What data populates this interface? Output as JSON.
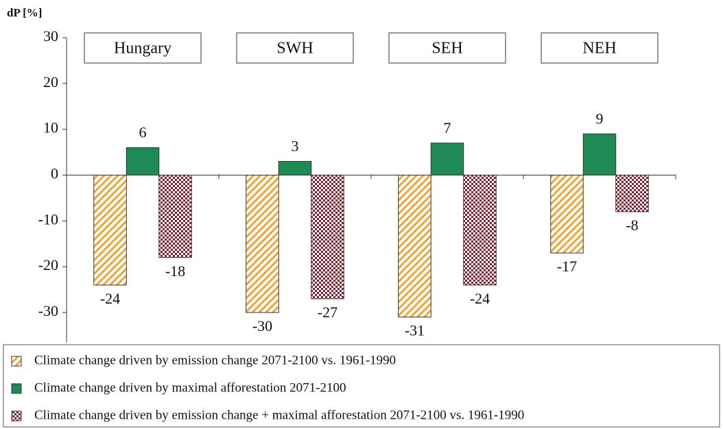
{
  "chart_data": {
    "type": "bar",
    "y_label": "dP [%]",
    "categories": [
      "Hungary",
      "SWH",
      "SEH",
      "NEH"
    ],
    "series": [
      {
        "name": "Climate change driven by emission change 2071-2100 vs. 1961-1990",
        "color": "#f0a531",
        "pattern": "hatch",
        "values": [
          -24,
          -30,
          -31,
          -17
        ]
      },
      {
        "name": "Climate change driven by maximal afforestation 2071-2100",
        "color": "#1e8b55",
        "pattern": "solid",
        "values": [
          6,
          3,
          7,
          9
        ]
      },
      {
        "name": "Climate change driven by emission change + maximal afforestation 2071-2100 vs. 1961-1990",
        "color": "#8a1a2c",
        "pattern": "checker",
        "values": [
          -18,
          -27,
          -24,
          -8
        ]
      }
    ],
    "ylim": [
      -35,
      30
    ],
    "yticks": [
      -30,
      -20,
      -10,
      0,
      10,
      20,
      30
    ],
    "grid": false
  }
}
